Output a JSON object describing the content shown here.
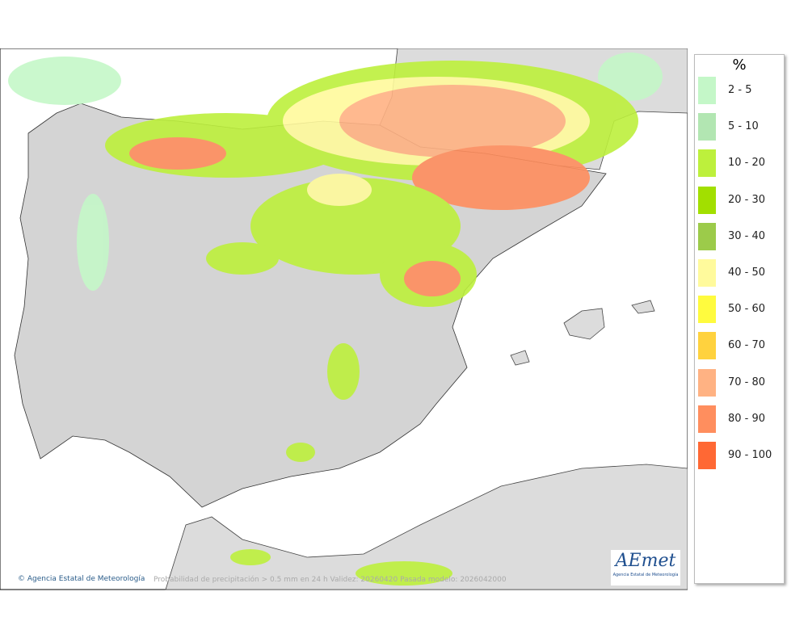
{
  "legend": {
    "title": "%",
    "items": [
      {
        "label": "2 - 5",
        "color": "#c4f7c8"
      },
      {
        "label": "5 - 10",
        "color": "#b2e6b2"
      },
      {
        "label": "10 - 20",
        "color": "#bdf03c"
      },
      {
        "label": "20 - 30",
        "color": "#a2df00"
      },
      {
        "label": "30 - 40",
        "color": "#9ccb4a"
      },
      {
        "label": "40 - 50",
        "color": "#fffa9c"
      },
      {
        "label": "50 - 60",
        "color": "#fffb3e"
      },
      {
        "label": "60 - 70",
        "color": "#ffd23e"
      },
      {
        "label": "70 - 80",
        "color": "#ffb283"
      },
      {
        "label": "80 - 90",
        "color": "#ff8e5e"
      },
      {
        "label": "90 - 100",
        "color": "#ff6834"
      }
    ]
  },
  "footer": {
    "credit": "Agencia Estatal de Meteorología",
    "caption": "Probabilidad de precipitación > 0.5 mm en 24 h Validez: 20260420 Pasada modelo: 2026042000"
  },
  "logo": {
    "word": "AEmet",
    "subtitle": "Agencia Estatal de Meteorología"
  }
}
